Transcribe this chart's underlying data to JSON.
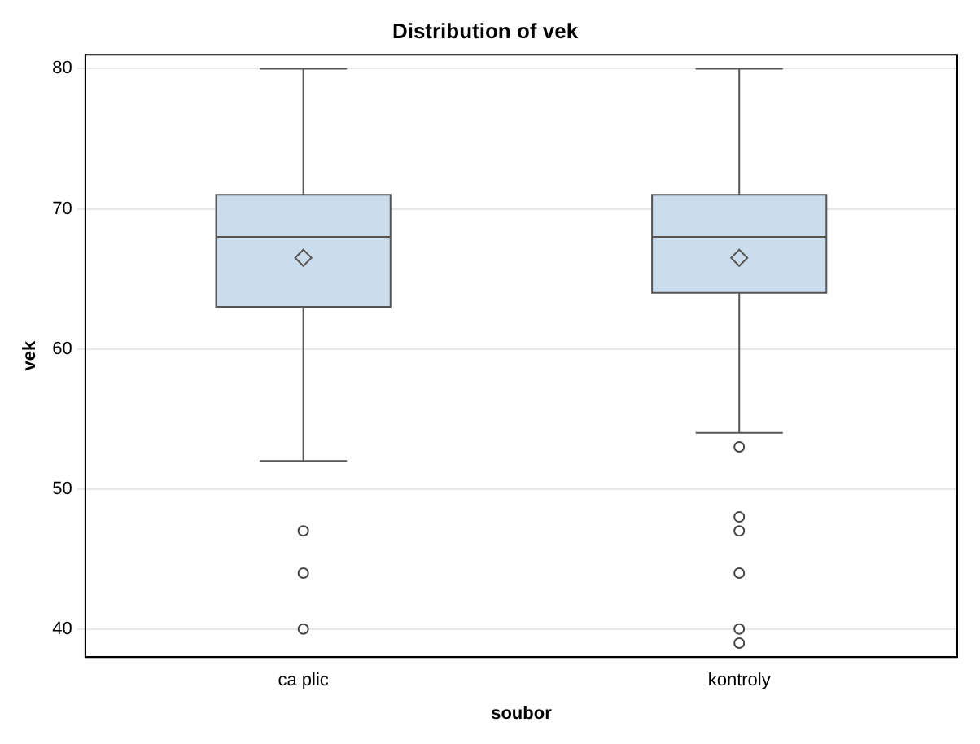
{
  "chart_data": {
    "type": "box",
    "title": "Distribution of vek",
    "xlabel": "soubor",
    "ylabel": "vek",
    "categories": [
      "ca plic",
      "kontroly"
    ],
    "color": "#cbdcec",
    "boxes": [
      {
        "low": 52,
        "q1": 63,
        "median": 68,
        "q3": 71,
        "high": 80,
        "mean": 66.5,
        "outliers": [
          47,
          44,
          40
        ]
      },
      {
        "low": 54,
        "q1": 64,
        "median": 68,
        "q3": 71,
        "high": 80,
        "mean": 66.5,
        "outliers": [
          53,
          48,
          47,
          44,
          40,
          39
        ]
      }
    ],
    "ylim": [
      38,
      81
    ],
    "yticks": [
      40,
      50,
      60,
      70,
      80
    ],
    "grid": "y",
    "legend": false
  }
}
